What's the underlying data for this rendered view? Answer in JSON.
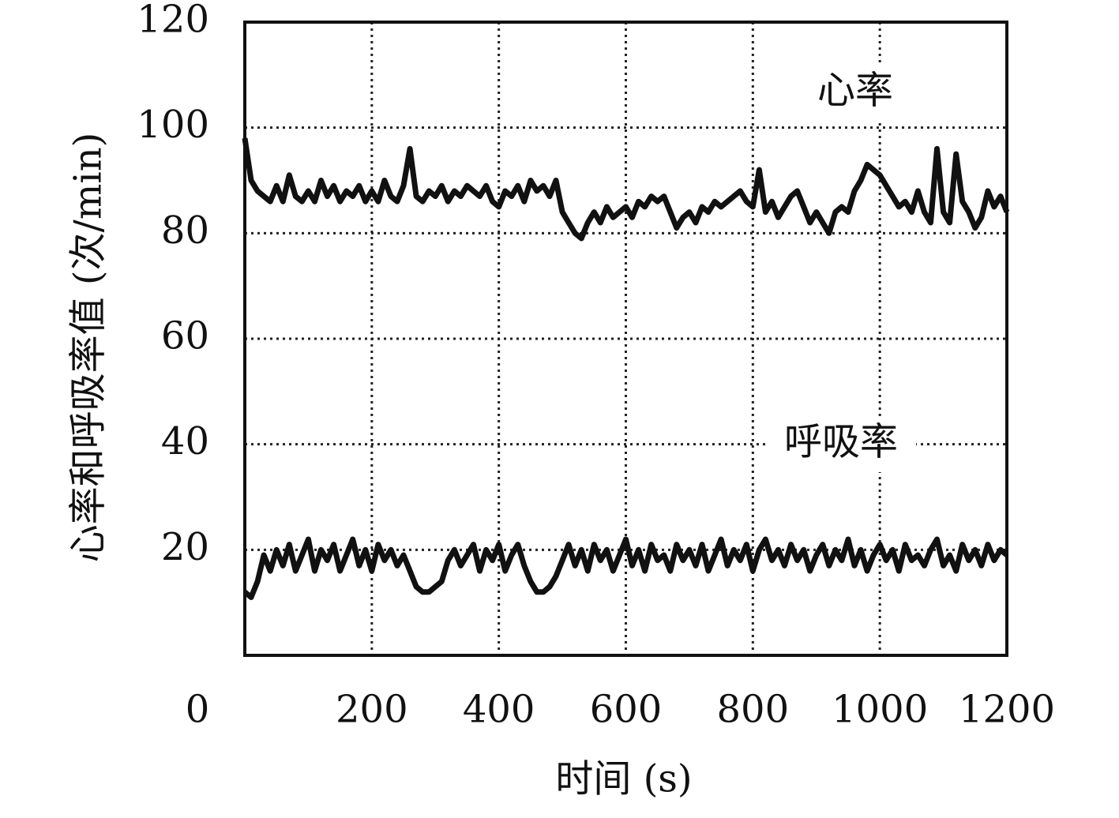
{
  "chart_data": {
    "type": "line",
    "xlabel": "时间 (s)",
    "ylabel": "心率和呼吸率值 (次/min)",
    "x": [
      0,
      10,
      20,
      30,
      40,
      50,
      60,
      70,
      80,
      90,
      100,
      110,
      120,
      130,
      140,
      150,
      160,
      170,
      180,
      190,
      200,
      210,
      220,
      230,
      240,
      250,
      260,
      270,
      280,
      290,
      300,
      310,
      320,
      330,
      340,
      350,
      360,
      370,
      380,
      390,
      400,
      410,
      420,
      430,
      440,
      450,
      460,
      470,
      480,
      490,
      500,
      510,
      520,
      530,
      540,
      550,
      560,
      570,
      580,
      590,
      600,
      610,
      620,
      630,
      640,
      650,
      660,
      670,
      680,
      690,
      700,
      710,
      720,
      730,
      740,
      750,
      760,
      770,
      780,
      790,
      800,
      810,
      820,
      830,
      840,
      850,
      860,
      870,
      880,
      890,
      900,
      910,
      920,
      930,
      940,
      950,
      960,
      970,
      980,
      990,
      1000,
      1010,
      1020,
      1030,
      1040,
      1050,
      1060,
      1070,
      1080,
      1090,
      1100,
      1110,
      1120,
      1130,
      1140,
      1150,
      1160,
      1170,
      1180,
      1190,
      1200
    ],
    "series": [
      {
        "name": "心率",
        "color": "#111111",
        "values": [
          98,
          90,
          88,
          87,
          86,
          89,
          86,
          91,
          87,
          86,
          88,
          86,
          90,
          87,
          89,
          86,
          88,
          87,
          89,
          86,
          88,
          86,
          90,
          87,
          86,
          89,
          96,
          87,
          86,
          88,
          87,
          89,
          86,
          88,
          87,
          89,
          88,
          87,
          89,
          86,
          85,
          88,
          87,
          89,
          86,
          90,
          88,
          89,
          87,
          90,
          84,
          82,
          80,
          79,
          82,
          84,
          82,
          85,
          83,
          84,
          85,
          83,
          86,
          85,
          87,
          86,
          87,
          84,
          81,
          83,
          84,
          82,
          85,
          84,
          86,
          85,
          86,
          87,
          88,
          86,
          85,
          92,
          84,
          86,
          83,
          85,
          87,
          88,
          85,
          82,
          84,
          82,
          80,
          84,
          85,
          84,
          88,
          90,
          93,
          92,
          91,
          89,
          87,
          85,
          86,
          84,
          88,
          84,
          82,
          96,
          84,
          82,
          95,
          86,
          84,
          81,
          83,
          88,
          85,
          87,
          84
        ]
      },
      {
        "name": "呼吸率",
        "color": "#111111",
        "values": [
          12,
          11,
          14,
          19,
          16,
          20,
          17,
          21,
          16,
          19,
          22,
          16,
          20,
          18,
          21,
          16,
          19,
          22,
          17,
          20,
          16,
          21,
          18,
          20,
          17,
          19,
          16,
          13,
          12,
          12,
          13,
          14,
          18,
          20,
          17,
          19,
          21,
          16,
          20,
          18,
          21,
          16,
          19,
          21,
          17,
          14,
          12,
          12,
          13,
          15,
          18,
          21,
          17,
          20,
          16,
          21,
          18,
          20,
          16,
          19,
          22,
          17,
          20,
          16,
          21,
          18,
          19,
          16,
          21,
          18,
          20,
          17,
          21,
          16,
          19,
          22,
          17,
          20,
          18,
          21,
          16,
          20,
          22,
          18,
          20,
          17,
          21,
          18,
          20,
          16,
          19,
          21,
          17,
          20,
          18,
          22,
          17,
          20,
          16,
          19,
          21,
          18,
          20,
          16,
          21,
          18,
          19,
          17,
          20,
          22,
          17,
          19,
          16,
          21,
          18,
          20,
          17,
          21,
          18,
          20,
          19
        ]
      }
    ],
    "xlim": [
      0,
      1200
    ],
    "xticks": [
      0,
      200,
      400,
      600,
      800,
      1000,
      1200
    ],
    "ylim": [
      0,
      120
    ],
    "yticks": [
      20,
      40,
      60,
      80,
      100,
      120
    ],
    "grid": true
  }
}
